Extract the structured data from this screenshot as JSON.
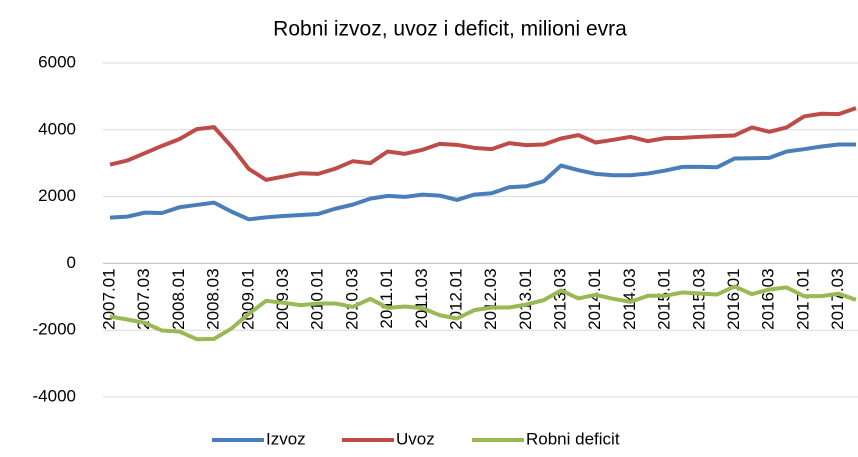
{
  "chart_data": {
    "type": "line",
    "title": "Robni izvoz, uvoz i deficit, milioni evra",
    "categories": [
      "2007.01",
      null,
      "2007.03",
      null,
      "2008.01",
      null,
      "2008.03",
      null,
      "2009.01",
      null,
      "2009.03",
      null,
      "2010.01",
      null,
      "2010.03",
      null,
      "2011.01",
      null,
      "2011.03",
      null,
      "2012.01",
      null,
      "2012.03",
      null,
      "2013.01",
      null,
      "2013.03",
      null,
      "2014.01",
      null,
      "2014.03",
      null,
      "2015.01",
      null,
      "2015.03",
      null,
      "2016.01",
      null,
      "2016.03",
      null,
      "2017.01",
      null,
      "2017.03",
      null
    ],
    "series": [
      {
        "name": "Izvoz",
        "color": "#4a7ebb",
        "values": [
          1370,
          1400,
          1520,
          1510,
          1680,
          1750,
          1820,
          1550,
          1320,
          1380,
          1420,
          1450,
          1480,
          1640,
          1760,
          1940,
          2020,
          1990,
          2060,
          2030,
          1900,
          2060,
          2100,
          2280,
          2310,
          2460,
          2930,
          2790,
          2680,
          2640,
          2640,
          2690,
          2780,
          2890,
          2890,
          2880,
          3140,
          3150,
          3160,
          3350,
          3420,
          3500,
          3560,
          3560
        ]
      },
      {
        "name": "Uvoz",
        "color": "#be4b48",
        "values": [
          2960,
          3080,
          3300,
          3520,
          3720,
          4020,
          4080,
          3500,
          2830,
          2500,
          2600,
          2700,
          2680,
          2840,
          3060,
          3000,
          3350,
          3280,
          3400,
          3580,
          3550,
          3460,
          3420,
          3600,
          3540,
          3560,
          3740,
          3840,
          3620,
          3700,
          3790,
          3660,
          3750,
          3760,
          3790,
          3810,
          3830,
          4070,
          3940,
          4070,
          4400,
          4480,
          4470,
          4650
        ]
      },
      {
        "name": "Robni deficit",
        "color": "#98b954",
        "values": [
          -1590,
          -1680,
          -1780,
          -2010,
          -2040,
          -2270,
          -2260,
          -1950,
          -1510,
          -1120,
          -1180,
          -1250,
          -1200,
          -1200,
          -1300,
          -1060,
          -1330,
          -1290,
          -1340,
          -1550,
          -1650,
          -1400,
          -1320,
          -1320,
          -1230,
          -1100,
          -810,
          -1050,
          -940,
          -1060,
          -1150,
          -970,
          -970,
          -870,
          -900,
          -930,
          -690,
          -920,
          -780,
          -720,
          -980,
          -980,
          -910,
          -1090
        ]
      }
    ],
    "ylim": [
      -4000,
      6000
    ],
    "yticks": [
      -4000,
      -2000,
      0,
      2000,
      4000,
      6000
    ],
    "grid": true,
    "legend": "bottom"
  }
}
